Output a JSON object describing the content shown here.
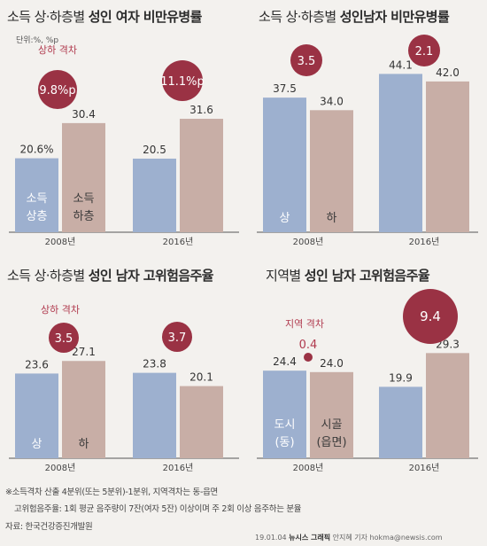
{
  "panels": [
    {
      "title_prefix": "소득 상·하층별",
      "title_bold": "성인 여자 비만유병률"
    },
    {
      "title_prefix": "소득 상·하층별",
      "title_bold": "성인남자 비만유병률"
    },
    {
      "title_prefix": "소득 상·하층별",
      "title_bold": "성인 남자 고위험음주율"
    },
    {
      "title_prefix": "지역별",
      "title_bold": "성인 남자 고위험음주율"
    }
  ],
  "unit": "단위:%, %p",
  "colors": {
    "lower_bar": "#9db0cf",
    "upper_bar": "#c8aea6",
    "circle": "#9a3244",
    "accent_text": "#b03a4e"
  },
  "chart_data": [
    {
      "type": "bar",
      "title": "소득 상·하층별 성인 여자 비만유병률",
      "categories": [
        "2008년",
        "2016년"
      ],
      "series": [
        {
          "name": "소득 상층",
          "values": [
            20.6,
            20.5
          ],
          "value_labels": [
            "20.6%",
            "20.5"
          ]
        },
        {
          "name": "소득 하층",
          "values": [
            30.4,
            31.6
          ],
          "value_labels": [
            "30.4",
            "31.6"
          ]
        }
      ],
      "gaps": [
        "9.8%p",
        "11.1%p"
      ],
      "gap_caption": "상하 격차",
      "ylim": [
        0,
        50
      ]
    },
    {
      "type": "bar",
      "title": "소득 상·하층별 성인남자 비만유병률",
      "categories": [
        "2008년",
        "2016년"
      ],
      "series": [
        {
          "name": "상",
          "values": [
            37.5,
            44.1
          ],
          "value_labels": [
            "37.5",
            "44.1"
          ]
        },
        {
          "name": "하",
          "values": [
            34.0,
            42.0
          ],
          "value_labels": [
            "34.0",
            "42.0"
          ]
        }
      ],
      "gaps": [
        "3.5",
        "2.1"
      ],
      "ylim": [
        0,
        50
      ]
    },
    {
      "type": "bar",
      "title": "소득 상·하층별 성인 남자 고위험음주율",
      "categories": [
        "2008년",
        "2016년"
      ],
      "series": [
        {
          "name": "상",
          "values": [
            23.6,
            23.8
          ],
          "value_labels": [
            "23.6",
            "23.8"
          ]
        },
        {
          "name": "하",
          "values": [
            27.1,
            20.1
          ],
          "value_labels": [
            "27.1",
            "20.1"
          ]
        }
      ],
      "gaps": [
        "3.5",
        "3.7"
      ],
      "gap_caption": "상하 격차",
      "ylim": [
        0,
        50
      ]
    },
    {
      "type": "bar",
      "title": "지역별 성인 남자 고위험음주율",
      "categories": [
        "2008년",
        "2016년"
      ],
      "series": [
        {
          "name": "도시(동)",
          "values": [
            24.4,
            19.9
          ],
          "value_labels": [
            "24.4",
            "19.9"
          ]
        },
        {
          "name": "시골(읍면)",
          "values": [
            24.0,
            29.3
          ],
          "value_labels": [
            "24.0",
            "29.3"
          ]
        }
      ],
      "gaps": [
        "0.4",
        "9.4"
      ],
      "gap_caption": "지역 격차",
      "ylim": [
        0,
        50
      ]
    }
  ],
  "footnotes": [
    "※소득격차 산출 4분위(또는 5분위)-1분위, 지역격차는 동-읍면",
    "고위험음주율: 1회 평균 음주량이 7잔(여자 5잔) 이상이며 주 2회 이상 음주하는 분율"
  ],
  "source": "자료: 한국건강증진개발원",
  "credit": {
    "date": "19.01.04",
    "agency": "뉴시스 그래픽",
    "author": "안지혜 기자 hokma@newsis.com"
  }
}
